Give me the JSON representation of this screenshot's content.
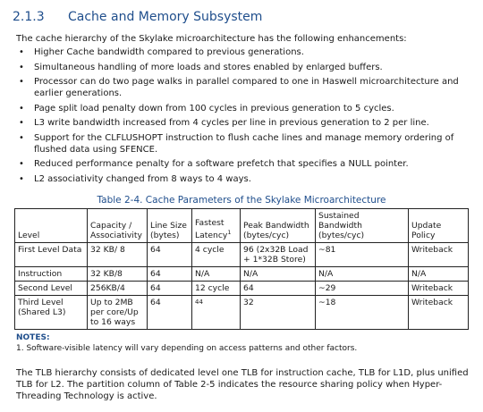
{
  "section": {
    "number": "2.1.3",
    "title": "Cache and Memory Subsystem"
  },
  "intro": "The cache hierarchy of the Skylake microarchitecture has the following enhancements:",
  "bullets": [
    "Higher Cache bandwidth compared to previous generations.",
    "Simultaneous handling of more loads and stores enabled by enlarged buffers.",
    "Processor can do two page walks in parallel compared to one in Haswell microarchitecture and earlier generations.",
    "Page split load penalty down from 100 cycles in previous generation to 5 cycles.",
    "L3 write bandwidth increased from 4 cycles per line in previous generation to 2 per line.",
    "Support for the CLFLUSHOPT instruction to flush cache lines and manage memory ordering of flushed data using SFENCE.",
    "Reduced performance penalty for a software prefetch that specifies a NULL pointer.",
    "L2 associativity changed from 8 ways to 4 ways."
  ],
  "bullet_glyph": "•",
  "table": {
    "caption": "Table 2-4.  Cache Parameters of the Skylake Microarchitecture",
    "headers": {
      "level": "Level",
      "capacity": "Capacity / Associativity",
      "line_size": "Line Size (bytes)",
      "latency": "Fastest Latency",
      "latency_sup": "1",
      "peak_bw": "Peak Bandwidth (bytes/cyc)",
      "sustained_bw": "Sustained Bandwidth (bytes/cyc)",
      "update_policy": "Update Policy"
    },
    "rows": [
      {
        "level": "First Level Data",
        "capacity": "32 KB/ 8",
        "line_size": "64",
        "latency": "4 cycle",
        "peak_bw": "96 (2x32B Load + 1*32B Store)",
        "sustained_bw": "~81",
        "update_policy": "Writeback"
      },
      {
        "level": "Instruction",
        "capacity": "32 KB/8",
        "line_size": "64",
        "latency": "N/A",
        "peak_bw": "N/A",
        "sustained_bw": "N/A",
        "update_policy": "N/A"
      },
      {
        "level": "Second Level",
        "capacity": "256KB/4",
        "line_size": "64",
        "latency": "12 cycle",
        "peak_bw": "64",
        "sustained_bw": "~29",
        "update_policy": "Writeback"
      },
      {
        "level": "Third Level (Shared L3)",
        "capacity": "Up to 2MB per core/Up to 16 ways",
        "line_size": "64",
        "latency": "44",
        "peak_bw": "32",
        "sustained_bw": "~18",
        "update_policy": "Writeback"
      }
    ]
  },
  "notes": {
    "title": "NOTES:",
    "items": [
      "1. Software-visible latency will vary depending on access patterns and other factors."
    ]
  },
  "closing": "The TLB hierarchy consists of dedicated level one TLB for instruction cache, TLB for L1D, plus unified TLB for L2. The partition column of Table 2-5 indicates the resource sharing policy when Hyper-Threading Technology is active."
}
